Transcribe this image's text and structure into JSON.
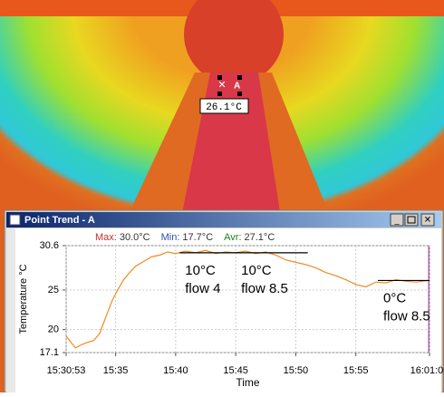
{
  "point": {
    "label": "A",
    "value": "26.1°C"
  },
  "window": {
    "title": "Point Trend - A"
  },
  "stats": [
    {
      "label": "Max:",
      "value": "30.0°C",
      "color": "#c03030"
    },
    {
      "label": "Min:",
      "value": "17.7°C",
      "color": "#3050b0"
    },
    {
      "label": "Avr:",
      "value": "27.1°C",
      "color": "#208020"
    }
  ],
  "chart_data": {
    "type": "line",
    "y_label": "Temperature °C",
    "x_label": "Time",
    "x": [
      55853,
      55880,
      55900,
      55930,
      55960,
      55990,
      56020,
      56050,
      56080,
      56110,
      56140,
      56170,
      56200,
      56240,
      56280,
      56320,
      56360,
      56400,
      56450,
      56500,
      56550,
      56600,
      56650,
      56700,
      56750,
      56800,
      56850,
      56900,
      56950,
      57000,
      57050,
      57100,
      57150,
      57200,
      57250,
      57300,
      57350,
      57400,
      57450,
      57500,
      57550,
      57600,
      57668
    ],
    "series": [
      {
        "name": "A",
        "color": "#f08a20",
        "values": [
          19.2,
          18.3,
          17.7,
          18.1,
          18.4,
          18.6,
          19.5,
          21.5,
          23.5,
          25,
          26.3,
          27.2,
          28,
          28.6,
          29.2,
          29.4,
          29.8,
          29.6,
          29.9,
          29.7,
          30.0,
          29.6,
          29.8,
          29.7,
          29.9,
          29.6,
          29.8,
          29.4,
          28.8,
          28.5,
          28.2,
          27.8,
          27.2,
          26.8,
          26.3,
          25.7,
          25.4,
          26.0,
          25.9,
          26.3,
          26.1,
          26.0,
          26.2
        ]
      }
    ],
    "xlim": [
      55853,
      57668
    ],
    "ylim": [
      17.1,
      30.6
    ],
    "xticks": [
      {
        "value": 55853,
        "label": "15:30:53"
      },
      {
        "value": 56100,
        "label": "15:35"
      },
      {
        "value": 56400,
        "label": "15:40"
      },
      {
        "value": 56700,
        "label": "15:45"
      },
      {
        "value": 57000,
        "label": "15:50"
      },
      {
        "value": 57300,
        "label": "15:55"
      },
      {
        "value": 57668,
        "label": "16:01:08"
      }
    ],
    "yticks": [
      17.1,
      20,
      25,
      30.6
    ],
    "grid": true,
    "references": [
      {
        "y": 29.7,
        "x": [
          56420,
          56720
        ],
        "lines": [
          "10°C",
          "flow 4"
        ]
      },
      {
        "y": 29.7,
        "x": [
          56700,
          57060
        ],
        "lines": [
          "10°C",
          "flow 8.5"
        ]
      },
      {
        "y": 26.2,
        "x": [
          57410,
          57668
        ],
        "lines": [
          "0°C",
          "flow 8.5"
        ]
      }
    ]
  }
}
